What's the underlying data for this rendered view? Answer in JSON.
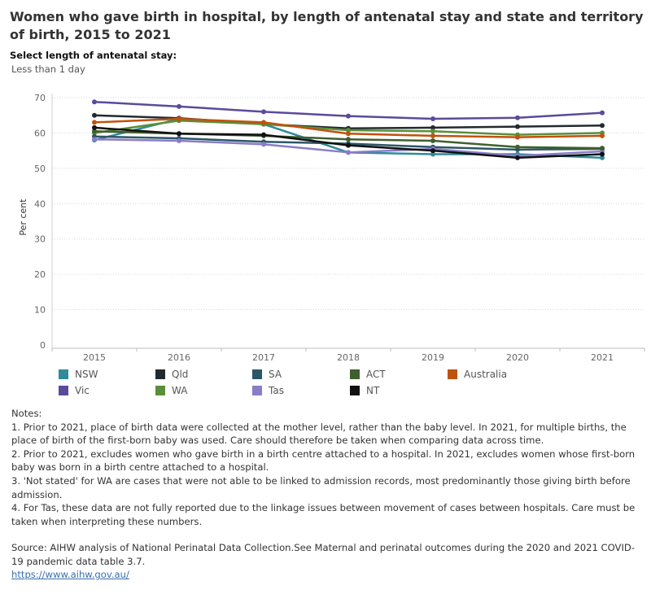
{
  "title": "Women who gave birth in hospital, by length of antenatal stay and state and territory of birth, 2015 to 2021",
  "filter": {
    "label": "Select length of antenatal stay:",
    "value": "Less than 1 day"
  },
  "chart_data": {
    "type": "line",
    "x": [
      "2015",
      "2016",
      "2017",
      "2018",
      "2019",
      "2020",
      "2021"
    ],
    "ylabel": "Per cent",
    "ylim": [
      0,
      70
    ],
    "yticks": [
      0,
      10,
      20,
      30,
      40,
      50,
      60,
      70
    ],
    "grid": true,
    "legend_position": "bottom",
    "series": [
      {
        "name": "NSW",
        "color": "#2e8b9a",
        "values": [
          58.0,
          64.0,
          62.5,
          54.5,
          54.0,
          54.0,
          53.0
        ]
      },
      {
        "name": "Vic",
        "color": "#5b4a9c",
        "values": [
          68.8,
          67.5,
          66.0,
          64.8,
          64.0,
          64.3,
          65.7
        ]
      },
      {
        "name": "Qld",
        "color": "#222a30",
        "values": [
          65.0,
          64.2,
          62.5,
          61.3,
          61.5,
          61.8,
          62.1
        ]
      },
      {
        "name": "WA",
        "color": "#5a8f3a",
        "values": [
          60.0,
          63.5,
          62.5,
          60.8,
          60.5,
          59.5,
          60.0
        ]
      },
      {
        "name": "SA",
        "color": "#2c5667",
        "values": [
          59.0,
          58.5,
          57.5,
          57.0,
          56.0,
          55.3,
          55.5
        ]
      },
      {
        "name": "Tas",
        "color": "#8a7cc8",
        "values": [
          58.2,
          57.8,
          56.8,
          54.5,
          55.5,
          53.5,
          54.8
        ]
      },
      {
        "name": "ACT",
        "color": "#3f5f2e",
        "values": [
          60.5,
          59.8,
          59.2,
          58.2,
          57.8,
          56.0,
          55.7
        ]
      },
      {
        "name": "NT",
        "color": "#111111",
        "values": [
          61.5,
          59.8,
          59.5,
          56.5,
          55.0,
          53.0,
          54.0
        ]
      },
      {
        "name": "Australia",
        "color": "#c0520f",
        "values": [
          63.0,
          64.0,
          63.0,
          59.8,
          59.2,
          58.8,
          59.2
        ]
      }
    ]
  },
  "legend": [
    {
      "name": "NSW",
      "color": "#2e8b9a"
    },
    {
      "name": "Qld",
      "color": "#222a30"
    },
    {
      "name": "SA",
      "color": "#2c5667"
    },
    {
      "name": "ACT",
      "color": "#3f5f2e"
    },
    {
      "name": "Australia",
      "color": "#c0520f"
    },
    {
      "name": "Vic",
      "color": "#5b4a9c"
    },
    {
      "name": "WA",
      "color": "#5a8f3a"
    },
    {
      "name": "Tas",
      "color": "#8a7cc8"
    },
    {
      "name": "NT",
      "color": "#111111"
    }
  ],
  "notes": {
    "heading": "Notes:",
    "n1": "1. Prior to 2021, place of birth data were collected at the mother level, rather than the baby level. In 2021, for multiple births, the place of birth of the first-born baby was used. Care should therefore be taken when comparing data across time.",
    "n2": "2. Prior to 2021, excludes women who gave birth in a birth centre attached to a hospital. In 2021, excludes women whose first-born baby was born in a birth centre attached to a hospital.",
    "n3": "3. 'Not stated' for WA are cases that were not able to be linked to admission records, most predominantly those giving birth before admission.",
    "n4": "4. For Tas, these data are not fully reported due to the linkage issues between movement of cases between hospitals. Care must be taken when interpreting these numbers."
  },
  "source": {
    "text": "Source: AIHW analysis of National Perinatal Data Collection.See Maternal and perinatal outcomes during the 2020 and 2021 COVID-19 pandemic data table 3.7.",
    "link": "https://www.aihw.gov.au/"
  }
}
